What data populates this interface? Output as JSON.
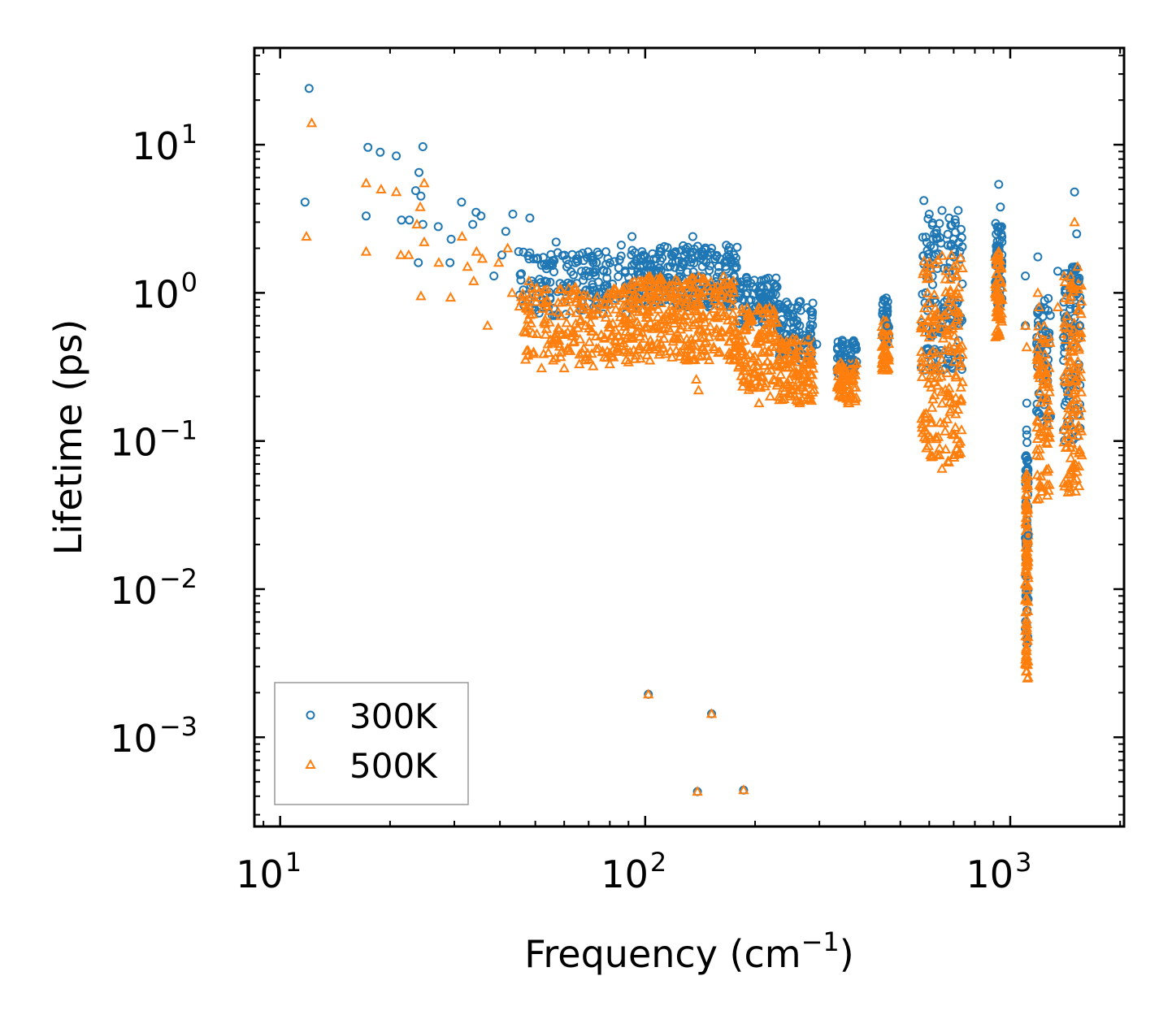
{
  "chart_data": {
    "type": "scatter",
    "xscale": "log",
    "yscale": "log",
    "xlabel_text": "Frequency (cm",
    "xlabel_sup": "−1",
    "xlabel_tail": ")",
    "ylabel": "Lifetime (ps)",
    "xlim": [
      8.5,
      2050
    ],
    "ylim": [
      0.00025,
      45
    ],
    "x_ticks": [
      {
        "value": 10,
        "base": "10",
        "exp": "1"
      },
      {
        "value": 100,
        "base": "10",
        "exp": "2"
      },
      {
        "value": 1000,
        "base": "10",
        "exp": "3"
      }
    ],
    "y_ticks": [
      {
        "value": 10,
        "base": "10",
        "exp": "1"
      },
      {
        "value": 1,
        "base": "10",
        "exp": "0"
      },
      {
        "value": 0.1,
        "base": "10",
        "exp": "−1"
      },
      {
        "value": 0.01,
        "base": "10",
        "exp": "−2"
      },
      {
        "value": 0.001,
        "base": "10",
        "exp": "−3"
      }
    ],
    "legend": {
      "position": "lower-left"
    },
    "series": [
      {
        "name": "300K",
        "marker": "circle",
        "color": "#1f77b4",
        "points": [
          [
            12.0,
            24
          ],
          [
            11.7,
            4.1
          ],
          [
            17.4,
            9.6
          ],
          [
            18.8,
            8.9
          ],
          [
            20.8,
            8.4
          ],
          [
            24.6,
            9.7
          ],
          [
            24.0,
            6.5
          ],
          [
            24.3,
            4.5
          ],
          [
            23.5,
            4.9
          ],
          [
            17.2,
            3.3
          ],
          [
            21.5,
            3.1
          ],
          [
            22.6,
            3.1
          ],
          [
            24.6,
            2.9
          ],
          [
            27.1,
            2.8
          ],
          [
            23.9,
            1.6
          ],
          [
            29.4,
            2.3
          ],
          [
            29.2,
            1.6
          ],
          [
            31.4,
            4.1
          ],
          [
            33.7,
            2.9
          ],
          [
            34.4,
            3.5
          ],
          [
            35.5,
            3.3
          ],
          [
            38.5,
            1.3
          ],
          [
            40.5,
            1.8
          ],
          [
            41.5,
            2.6
          ],
          [
            43.4,
            3.4
          ],
          [
            45.0,
            1.9
          ],
          [
            48.3,
            3.2
          ],
          [
            50.4,
            1.7
          ],
          [
            53.1,
            1.2
          ],
          [
            57.0,
            2.2
          ],
          [
            61.0,
            1.5
          ],
          [
            66.0,
            1.8
          ],
          [
            72.0,
            1.6
          ],
          [
            79.0,
            1.7
          ],
          [
            86.0,
            2.1
          ],
          [
            92.0,
            2.4
          ],
          [
            98.0,
            1.9
          ],
          [
            104.0,
            1.5
          ],
          [
            110.0,
            2.0
          ],
          [
            118.0,
            1.8
          ],
          [
            126.0,
            1.6
          ],
          [
            135.0,
            2.4
          ],
          [
            143.0,
            1.9
          ],
          [
            152.0,
            2.0
          ],
          [
            160.0,
            1.7
          ],
          [
            175.0,
            1.8
          ],
          [
            190.0,
            1.2
          ],
          [
            205.0,
            1.0
          ],
          [
            220.0,
            0.95
          ],
          [
            235.0,
            0.8
          ],
          [
            250.0,
            0.7
          ],
          [
            265.0,
            0.6
          ],
          [
            280.0,
            0.5
          ],
          [
            295.0,
            0.45
          ],
          [
            345.0,
            0.45
          ],
          [
            365.0,
            0.35
          ],
          [
            450.0,
            0.9
          ],
          [
            460.0,
            0.6
          ],
          [
            580.0,
            4.2
          ],
          [
            600.0,
            3.4
          ],
          [
            620.0,
            2.5
          ],
          [
            650.0,
            3.6
          ],
          [
            680.0,
            3.2
          ],
          [
            700.0,
            2.3
          ],
          [
            720.0,
            3.6
          ],
          [
            930.0,
            5.4
          ],
          [
            940.0,
            3.8
          ],
          [
            1100.0,
            1.3
          ],
          [
            1100.0,
            0.6
          ],
          [
            1110.0,
            0.18
          ],
          [
            1110.0,
            0.11
          ],
          [
            1120.0,
            0.023
          ],
          [
            1190.0,
            1.75
          ],
          [
            1210.0,
            0.8
          ],
          [
            1250.0,
            0.55
          ],
          [
            1350.0,
            1.4
          ],
          [
            1400.0,
            0.5
          ],
          [
            1500.0,
            4.8
          ],
          [
            1520.0,
            2.5
          ],
          [
            1540.0,
            1.2
          ],
          [
            1550.0,
            0.6
          ],
          [
            102.0,
            0.00195
          ],
          [
            152.0,
            0.00144
          ],
          [
            139.0,
            0.00043
          ],
          [
            186.0,
            0.00044
          ]
        ]
      },
      {
        "name": "500K",
        "marker": "triangle",
        "color": "#ff7f0e",
        "points": [
          [
            12.2,
            14
          ],
          [
            11.8,
            2.4
          ],
          [
            17.2,
            5.5
          ],
          [
            18.9,
            5.0
          ],
          [
            20.8,
            4.8
          ],
          [
            24.8,
            5.5
          ],
          [
            24.2,
            3.8
          ],
          [
            23.7,
            2.9
          ],
          [
            17.2,
            1.9
          ],
          [
            21.4,
            1.8
          ],
          [
            22.5,
            1.8
          ],
          [
            24.8,
            2.2
          ],
          [
            24.3,
            0.95
          ],
          [
            27.2,
            1.6
          ],
          [
            29.3,
            0.93
          ],
          [
            31.5,
            2.4
          ],
          [
            32.6,
            1.5
          ],
          [
            33.9,
            1.2
          ],
          [
            34.5,
            1.9
          ],
          [
            35.8,
            1.7
          ],
          [
            37.0,
            0.6
          ],
          [
            39.7,
            1.6
          ],
          [
            42.0,
            2.0
          ],
          [
            43.2,
            1.0
          ],
          [
            46.5,
            0.55
          ],
          [
            48.0,
            1.2
          ],
          [
            52.0,
            0.31
          ],
          [
            56.0,
            0.35
          ],
          [
            60.0,
            0.31
          ],
          [
            66.0,
            0.33
          ],
          [
            72.0,
            0.32
          ],
          [
            80.0,
            0.33
          ],
          [
            90.0,
            0.34
          ],
          [
            97.0,
            0.36
          ],
          [
            103.0,
            0.35
          ],
          [
            110.0,
            0.4
          ],
          [
            120.0,
            0.5
          ],
          [
            130.0,
            0.35
          ],
          [
            138.0,
            0.26
          ],
          [
            140.0,
            0.22
          ],
          [
            150.0,
            0.7
          ],
          [
            160.0,
            0.4
          ],
          [
            175.0,
            0.35
          ],
          [
            190.0,
            0.25
          ],
          [
            205.0,
            0.18
          ],
          [
            220.0,
            0.2
          ],
          [
            235.0,
            0.28
          ],
          [
            250.0,
            0.2
          ],
          [
            265.0,
            0.18
          ],
          [
            280.0,
            0.25
          ],
          [
            340.0,
            0.23
          ],
          [
            360.0,
            0.18
          ],
          [
            450.0,
            0.45
          ],
          [
            460.0,
            0.3
          ],
          [
            580.0,
            1.4
          ],
          [
            600.0,
            0.5
          ],
          [
            620.0,
            0.25
          ],
          [
            640.0,
            0.08
          ],
          [
            650.0,
            0.065
          ],
          [
            680.0,
            0.2
          ],
          [
            700.0,
            0.8
          ],
          [
            720.0,
            0.6
          ],
          [
            740.0,
            0.25
          ],
          [
            930.0,
            1.9
          ],
          [
            950.0,
            0.9
          ],
          [
            1100.0,
            0.6
          ],
          [
            1110.0,
            0.43
          ],
          [
            1110.0,
            0.06
          ],
          [
            1115.0,
            0.0025
          ],
          [
            1190.0,
            1.0
          ],
          [
            1200.0,
            0.8
          ],
          [
            1230.0,
            0.3
          ],
          [
            1260.0,
            0.15
          ],
          [
            1350.0,
            0.8
          ],
          [
            1420.0,
            0.09
          ],
          [
            1440.0,
            0.045
          ],
          [
            1500.0,
            3.0
          ],
          [
            1530.0,
            1.5
          ],
          [
            1560.0,
            0.5
          ],
          [
            1570.0,
            0.08
          ],
          [
            102.0,
            0.00195
          ],
          [
            152.0,
            0.00144
          ],
          [
            139.0,
            0.00043
          ],
          [
            186.0,
            0.00044
          ]
        ]
      }
    ]
  }
}
